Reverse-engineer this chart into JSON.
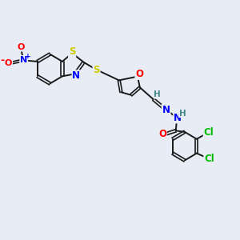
{
  "background_color": "#e8edf5",
  "bond_color": "#1a1a1a",
  "atom_colors": {
    "S": "#cccc00",
    "N": "#0000ff",
    "O": "#ff0000",
    "Cl": "#00bb00",
    "H": "#448888",
    "C": "#1a1a1a"
  },
  "figsize": [
    3.0,
    3.0
  ],
  "dpi": 100,
  "xlim": [
    0,
    10
  ],
  "ylim": [
    0,
    10
  ]
}
